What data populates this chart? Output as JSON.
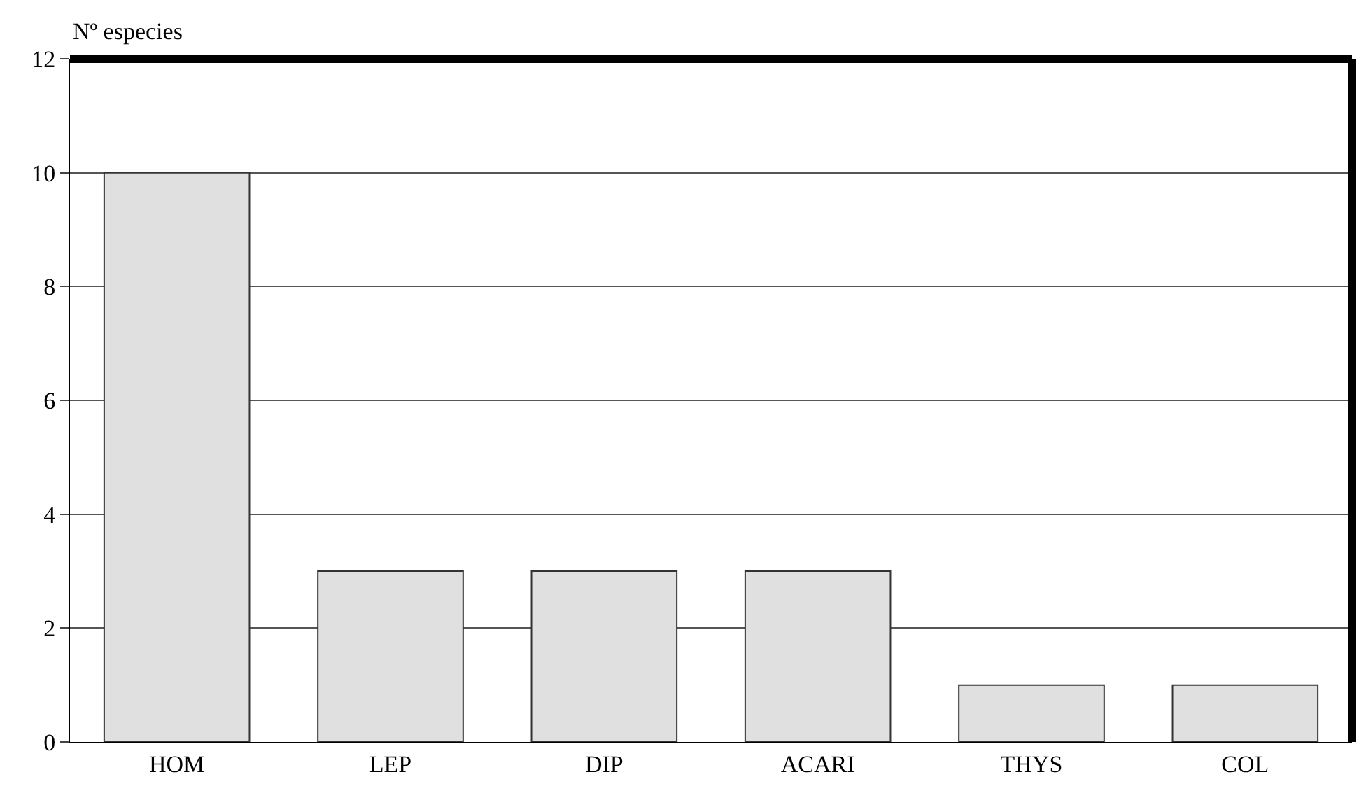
{
  "chart_data": {
    "type": "bar",
    "ylabel": "Nº especies",
    "categories": [
      "HOM",
      "LEP",
      "DIP",
      "ACARI",
      "THYS",
      "COL"
    ],
    "values": [
      10,
      3,
      3,
      3,
      1,
      1
    ],
    "color": "#e0e0e0",
    "ylim": [
      0,
      12
    ],
    "yticks": [
      0,
      2,
      4,
      6,
      8,
      10,
      12
    ],
    "grid": "y"
  }
}
